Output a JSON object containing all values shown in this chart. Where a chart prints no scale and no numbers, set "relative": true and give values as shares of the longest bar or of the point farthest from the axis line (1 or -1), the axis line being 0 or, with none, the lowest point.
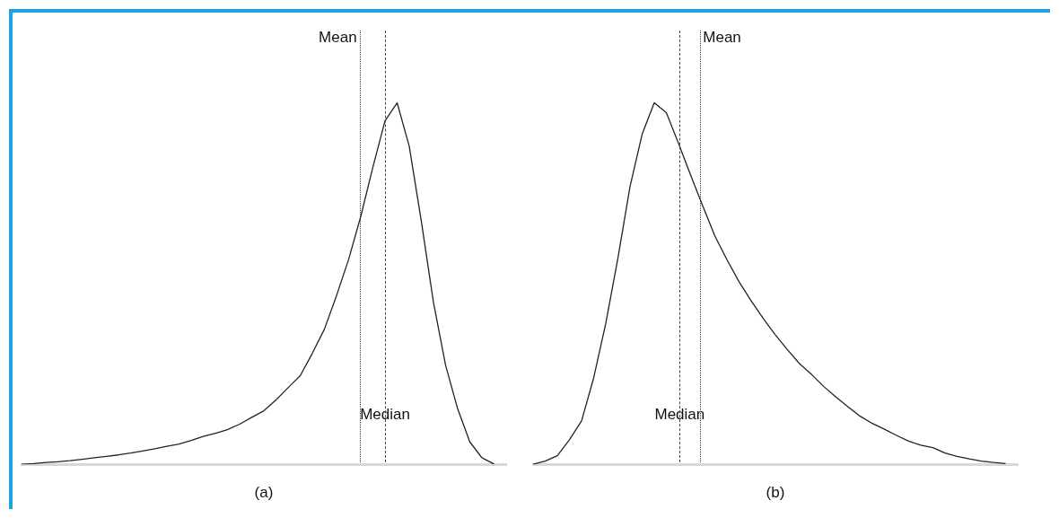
{
  "chart_data": [
    {
      "type": "line",
      "xlabel": "(a)",
      "relative": true,
      "legend": false,
      "marker": "none",
      "line_style": "solid",
      "categories": [
        null,
        null,
        null,
        null,
        null,
        null,
        null,
        null,
        null,
        null,
        null,
        null,
        null,
        null,
        null,
        null,
        null,
        null,
        null,
        null,
        null,
        null,
        null,
        null,
        null,
        null,
        null,
        null,
        null,
        null,
        null,
        null,
        null,
        null,
        null,
        null,
        null,
        null,
        null,
        null,
        null
      ],
      "series": [
        {
          "color": "#222222",
          "values": [
            0,
            0.002,
            0.005,
            0.007,
            0.01,
            0.014,
            0.018,
            0.022,
            0.026,
            0.031,
            0.037,
            0.043,
            0.05,
            0.056,
            0.066,
            0.077,
            0.086,
            0.096,
            0.111,
            0.13,
            0.148,
            0.178,
            0.212,
            0.245,
            0.307,
            0.374,
            0.467,
            0.567,
            0.686,
            0.822,
            0.95,
            1,
            0.88,
            0.672,
            0.448,
            0.274,
            0.153,
            0.062,
            0.018,
            0.001,
            null
          ]
        }
      ],
      "annotations": [
        "Mean",
        "Median"
      ]
    },
    {
      "type": "line",
      "xlabel": "(b)",
      "relative": true,
      "legend": false,
      "marker": "none",
      "line_style": "solid",
      "categories": [
        null,
        null,
        null,
        null,
        null,
        null,
        null,
        null,
        null,
        null,
        null,
        null,
        null,
        null,
        null,
        null,
        null,
        null,
        null,
        null,
        null,
        null,
        null,
        null,
        null,
        null,
        null,
        null,
        null,
        null,
        null,
        null,
        null,
        null,
        null,
        null,
        null,
        null,
        null,
        null,
        null
      ],
      "series": [
        {
          "color": "#222222",
          "values": [
            0,
            0.009,
            0.024,
            0.068,
            0.12,
            0.239,
            0.39,
            0.57,
            0.768,
            0.913,
            1,
            0.973,
            0.888,
            0.8,
            0.715,
            0.632,
            0.566,
            0.505,
            0.452,
            0.403,
            0.358,
            0.317,
            0.278,
            0.248,
            0.215,
            0.186,
            0.159,
            0.133,
            0.113,
            0.097,
            0.08,
            0.064,
            0.053,
            0.046,
            0.031,
            0.022,
            0.015,
            0.009,
            0.005,
            0.002,
            null
          ]
        }
      ],
      "annotations": [
        "Mean",
        "Median"
      ]
    }
  ]
}
